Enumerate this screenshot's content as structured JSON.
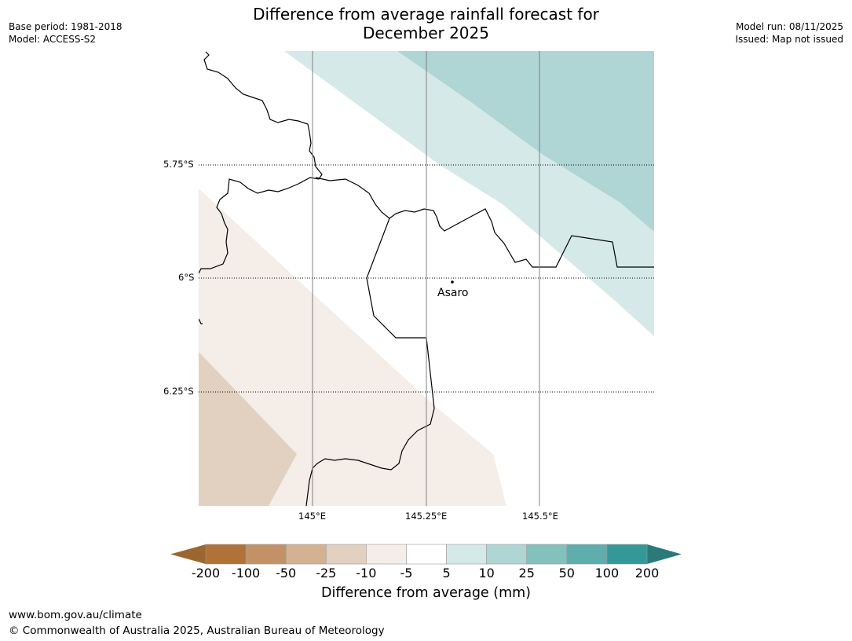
{
  "title": {
    "line1": "Difference from average rainfall forecast for",
    "line2": "December 2025"
  },
  "meta_left": {
    "base_period": "Base period: 1981-2018",
    "model": "Model: ACCESS-S2"
  },
  "meta_right": {
    "model_run": "Model run: 08/11/2025",
    "issued": "Issued: Map not issued"
  },
  "map": {
    "place_name": "Asaro",
    "lat_labels": [
      "5.75°S",
      "6°S",
      "6.25°S"
    ],
    "lon_labels": [
      "145°E",
      "145.25°E",
      "145.5°E"
    ],
    "colors": {
      "dry_light": "#f4ede8",
      "dry_mid": "#e2d0c0",
      "wet_light": "#d5e9e8",
      "wet_mid": "#afd5d4",
      "border": "#000000"
    }
  },
  "colorbar": {
    "ticks": [
      "-200",
      "-100",
      "-50",
      "-25",
      "-10",
      "-5",
      "5",
      "10",
      "25",
      "50",
      "100",
      "200"
    ],
    "colors": [
      "#b07238",
      "#c29266",
      "#d4b291",
      "#e2d0c0",
      "#f4ede8",
      "#ffffff",
      "#d5e9e8",
      "#afd5d4",
      "#83c1bd",
      "#5daead",
      "#339998"
    ],
    "under_color": "#9c6630",
    "over_color": "#2a7a7a",
    "label": "Difference from average (mm)"
  },
  "footer": {
    "url": "www.bom.gov.au/climate",
    "copyright": "© Commonwealth of Australia 2025, Australian Bureau of Meteorology"
  }
}
